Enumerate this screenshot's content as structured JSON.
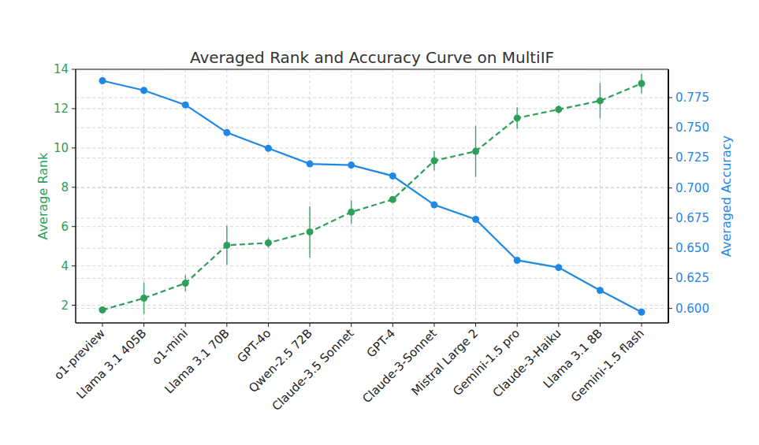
{
  "chart_data": {
    "type": "line",
    "title": "Averaged Rank and Accuracy Curve on MultiIF",
    "ylabel": "Average Rank",
    "y2label": "Averaged Accuracy",
    "categories": [
      "o1-preview",
      "Llama 3.1 405B",
      "o1-mini",
      "Llama 3.1 70B",
      "GPT-4o",
      "Qwen-2.5 72B",
      "Claude-3.5 Sonnet",
      "GPT-4",
      "Claude-3-Sonnet",
      "Mistral Large 2",
      "Gemini-1.5 pro",
      "Claude-3-Haiku",
      "Llama 3.1 8B",
      "Gemini-1.5 flash"
    ],
    "ylim": [
      1.1,
      14
    ],
    "yticks": [
      2,
      4,
      6,
      8,
      10,
      12,
      14
    ],
    "y2lim": [
      0.588,
      0.7985
    ],
    "y2ticks": [
      {
        "value": 0.6,
        "label": "0.600"
      },
      {
        "value": 0.625,
        "label": "0.625"
      },
      {
        "value": 0.65,
        "label": "0.650"
      },
      {
        "value": 0.675,
        "label": "0.675"
      },
      {
        "value": 0.7,
        "label": "0.700"
      },
      {
        "value": 0.725,
        "label": "0.725"
      },
      {
        "value": 0.75,
        "label": "0.750"
      },
      {
        "value": 0.775,
        "label": "0.775"
      }
    ],
    "grid": true,
    "series": [
      {
        "color": "#2e9e5b",
        "line_style": "dashed",
        "marker": "circle",
        "values": [
          1.76,
          2.36,
          3.12,
          5.05,
          5.17,
          5.73,
          6.74,
          7.38,
          9.35,
          9.83,
          11.52,
          11.96,
          12.4,
          13.28
        ],
        "errors": [
          0.1,
          0.8,
          0.4,
          1.0,
          0.25,
          1.3,
          0.6,
          0.15,
          0.5,
          1.3,
          0.55,
          0.2,
          0.9,
          0.5
        ]
      },
      {
        "color": "#1f88e5",
        "line_style": "solid",
        "marker": "circle",
        "axis": "y2",
        "values": [
          0.789,
          0.781,
          0.769,
          0.746,
          0.733,
          0.72,
          0.719,
          0.71,
          0.686,
          0.674,
          0.64,
          0.634,
          0.615,
          0.597
        ]
      }
    ]
  }
}
